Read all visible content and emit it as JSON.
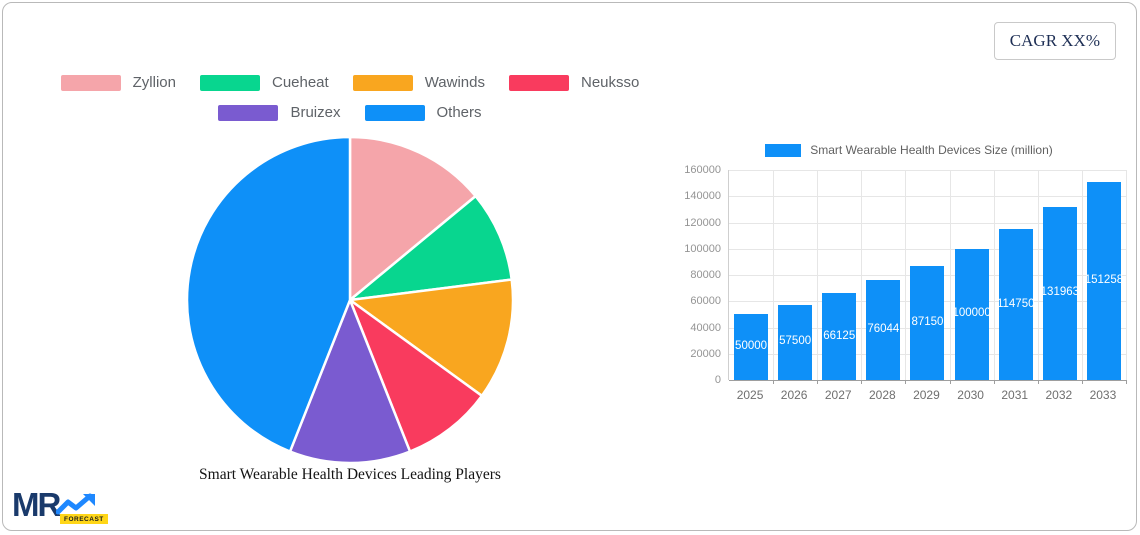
{
  "cagr_label": "CAGR XX%",
  "logo": {
    "text": "MR",
    "badge": "FORECAST"
  },
  "chart_data": [
    {
      "type": "pie",
      "title": "Smart Wearable Health Devices Leading Players",
      "labels": [
        "Zyllion",
        "Cueheat",
        "Wawinds",
        "Neuksso",
        "Bruizex",
        "Others"
      ],
      "values": [
        14,
        9,
        12,
        9,
        12,
        44
      ],
      "colors": [
        "#f5a5aa",
        "#08d68f",
        "#f9a61f",
        "#f93b5e",
        "#7a5bd0",
        "#0e90f8"
      ],
      "start_angle_deg": 0,
      "direction": "clockwise",
      "legend_position": "top",
      "slice_border_color": "#ffffff"
    },
    {
      "type": "bar",
      "legend": "Smart Wearable Health Devices Size (million)",
      "categories": [
        "2025",
        "2026",
        "2027",
        "2028",
        "2029",
        "2030",
        "2031",
        "2032",
        "2033"
      ],
      "values": [
        50000,
        57500,
        66125,
        76044,
        87150,
        100000,
        114750,
        131963,
        151258
      ],
      "bar_color": "#0e90f8",
      "value_label_color": "#ffffff",
      "ylim": [
        0,
        160000
      ],
      "y_tick_step": 20000,
      "grid": true,
      "legend_position": "top"
    }
  ]
}
